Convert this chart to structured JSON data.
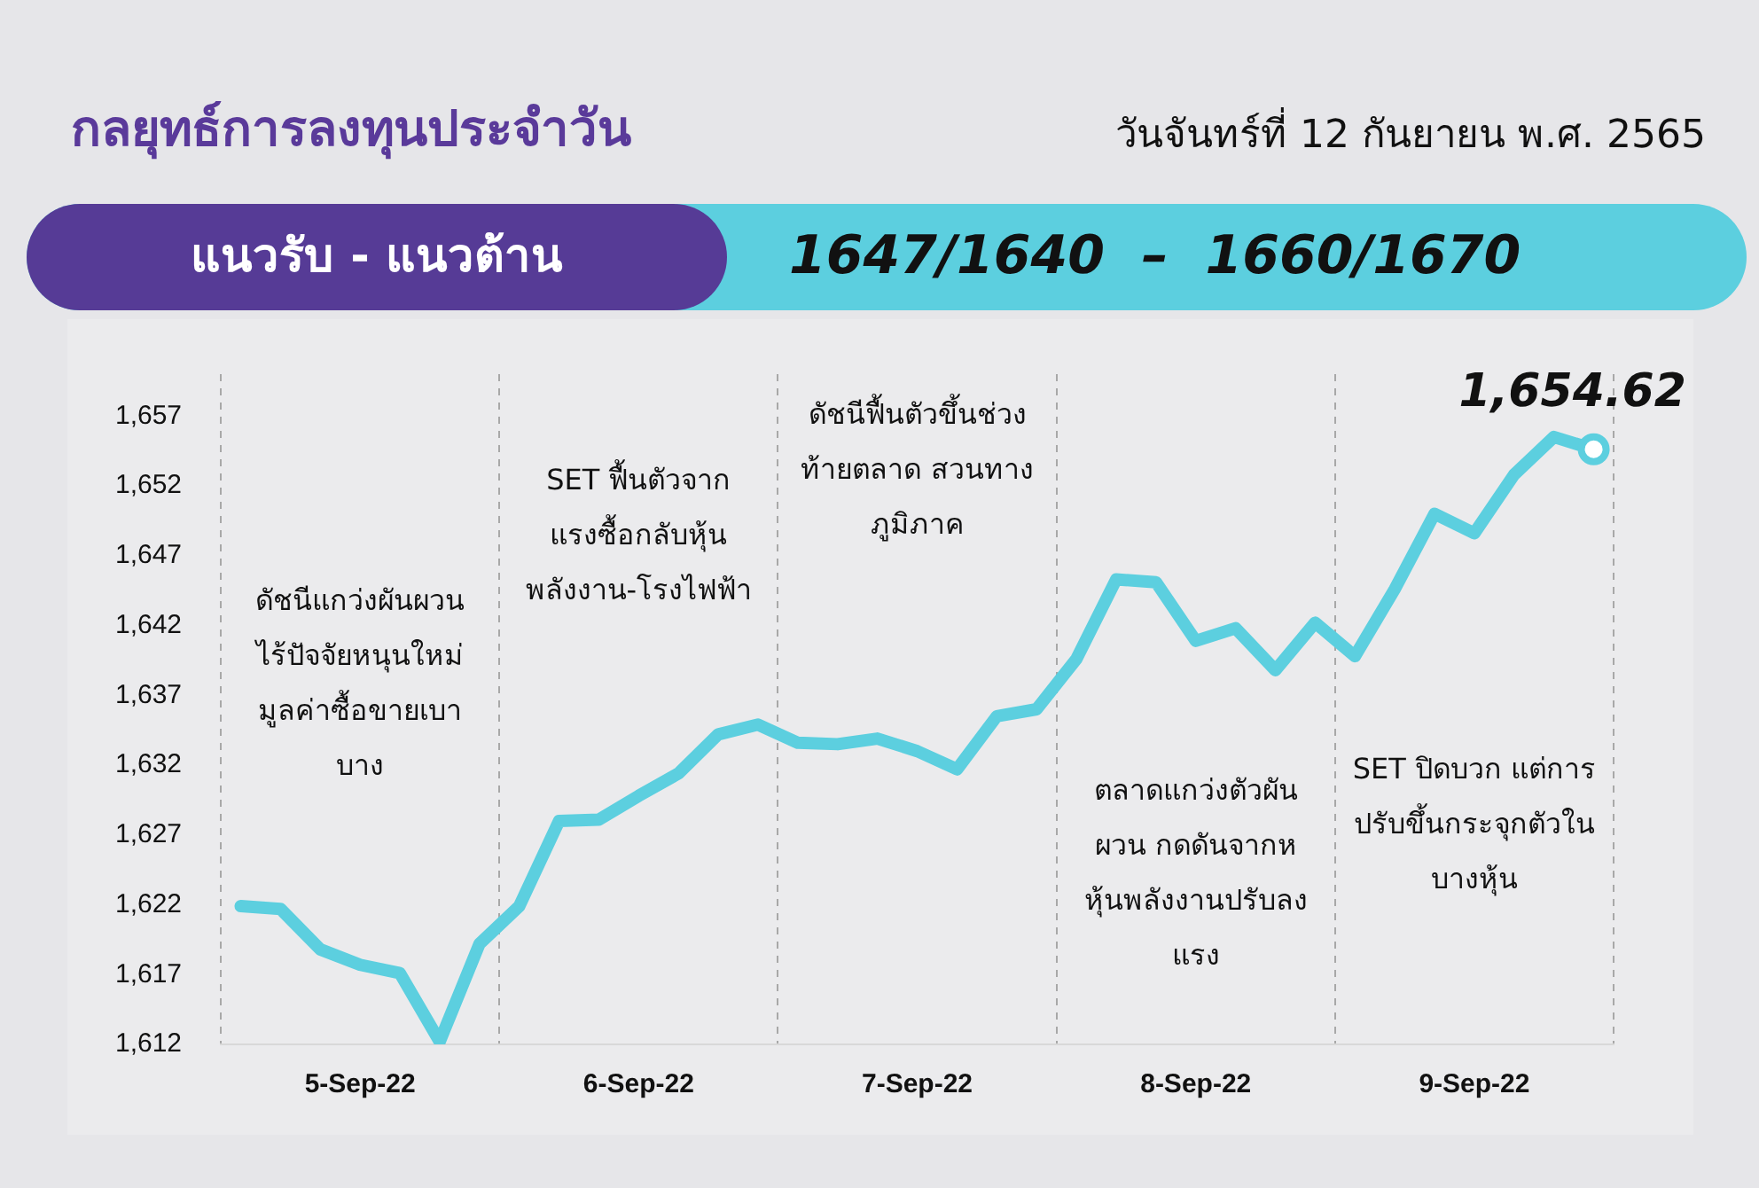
{
  "chart_data": {
    "type": "line",
    "title": "กลยุทธ์การลงทุนประจำวัน",
    "subtitle": "วันจันทร์ที่ 12 กันยายน พ.ศ. 2565",
    "categories": [
      null,
      null,
      null,
      "5-Sep-22",
      null,
      null,
      null,
      null,
      null,
      null,
      "6-Sep-22",
      null,
      null,
      null,
      null,
      null,
      null,
      "7-Sep-22",
      null,
      null,
      null,
      null,
      null,
      null,
      "8-Sep-22",
      null,
      null,
      null,
      null,
      null,
      null,
      "9-Sep-22",
      null,
      null,
      null
    ],
    "series": [
      {
        "color": "#5ccfdf",
        "values": [
          1621.9,
          1621.7,
          1618.8,
          1617.7,
          1617.1,
          1612.2,
          1619.2,
          1621.9,
          1628.0,
          1628.1,
          1629.8,
          1631.4,
          1634.2,
          1634.9,
          1633.6,
          1633.5,
          1633.9,
          1633.0,
          1631.7,
          1635.5,
          1636.0,
          1639.6,
          1645.3,
          1645.1,
          1640.9,
          1641.8,
          1638.8,
          1642.2,
          1639.8,
          1644.6,
          1650.0,
          1648.6,
          1652.8,
          1655.5,
          1654.62
        ],
        "value_labels": [
          null,
          null,
          null,
          null,
          null,
          null,
          null,
          null,
          null,
          null,
          null,
          null,
          null,
          null,
          null,
          null,
          null,
          null,
          null,
          null,
          null,
          null,
          null,
          null,
          null,
          null,
          null,
          null,
          null,
          null,
          null,
          null,
          null,
          null,
          "1,654.62"
        ]
      }
    ],
    "ylim": [
      1612,
      1660
    ],
    "yticks": [
      {
        "value": 1612,
        "label": "1,612"
      },
      {
        "value": 1617,
        "label": "1,617"
      },
      {
        "value": 1622,
        "label": "1,622"
      },
      {
        "value": 1627,
        "label": "1,627"
      },
      {
        "value": 1632,
        "label": "1,632"
      },
      {
        "value": 1637,
        "label": "1,637"
      },
      {
        "value": 1642,
        "label": "1,642"
      },
      {
        "value": 1647,
        "label": "1,647"
      },
      {
        "value": 1652,
        "label": "1,652"
      },
      {
        "value": 1657,
        "label": "1,657"
      }
    ],
    "grid": "x",
    "legend": false,
    "annotations": [
      "แนวรับ - แนวต้าน",
      "1647/1640  –  1660/1670",
      "ดัชนีแกว่งผันผวน\nไร้ปัจจัยหนุนใหม่\nมูลค่าซื้อขายเบา\nบาง",
      "SET ฟื้นตัวจาก\nแรงซื้อกลับหุ้น\nพลังงาน-โรงไฟฟ้า",
      "ดัชนีฟื้นตัวขึ้นช่วง\nท้ายตลาด สวนทาง\nภูมิภาค",
      "ตลาดแกว่งตัวผัน\nผวน กดดันจากห\nหุ้นพลังงานปรับลง\nแรง",
      "SET ปิดบวก แต่การ\nปรับขึ้นกระจุกตัวใน\nบางหุ้น"
    ]
  }
}
